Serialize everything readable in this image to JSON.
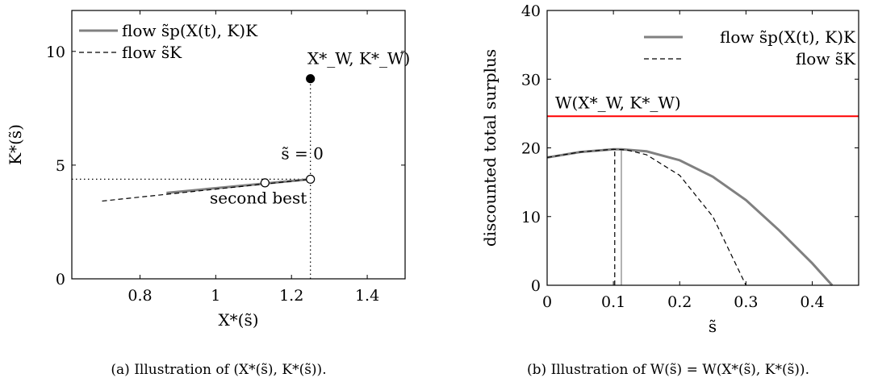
{
  "chart_data": [
    {
      "id": "a",
      "type": "line",
      "caption": "(a) Illustration of (X*(s̃), K*(s̃)).",
      "xlabel": "X*(s̃)",
      "ylabel": "K*(s̃)",
      "xlim": [
        0.62,
        1.5
      ],
      "ylim": [
        0,
        11.8
      ],
      "xticks": [
        0.8,
        1,
        1.2,
        1.4
      ],
      "xtick_labels": [
        "0.8",
        "1",
        "1.2",
        "1.4"
      ],
      "yticks": [
        0,
        5,
        10
      ],
      "ytick_labels": [
        "0",
        "5",
        "10"
      ],
      "legend_position": "top-left",
      "series": [
        {
          "name": "flow s̃p(X(t), K)K",
          "style": "solid-gray",
          "color": "#808080",
          "x": [
            0.87,
            1.25
          ],
          "y": [
            3.78,
            4.38
          ]
        },
        {
          "name": "flow s̃K",
          "style": "dashed-black",
          "color": "#000000",
          "x": [
            0.7,
            1.25
          ],
          "y": [
            3.42,
            4.38
          ]
        }
      ],
      "points": [
        {
          "label": "(X*_W, K*_W)",
          "x": 1.25,
          "y": 8.8,
          "fill": "filled"
        },
        {
          "label": "s̃ = 0",
          "x": 1.25,
          "y": 4.38,
          "fill": "open"
        },
        {
          "label": "second best",
          "x": 1.13,
          "y": 4.22,
          "fill": "open"
        }
      ],
      "annotations": {
        "welfare_point": "X*_W, K*_W)",
        "s_zero": "s̃ = 0",
        "second_best": "second best"
      }
    },
    {
      "id": "b",
      "type": "line",
      "caption": "(b) Illustration of W(s̃) = W(X*(s̃), K*(s̃)).",
      "xlabel": "s̃",
      "ylabel": "discounted total surplus",
      "xlim": [
        0,
        0.47
      ],
      "ylim": [
        0,
        40
      ],
      "xticks": [
        0,
        0.1,
        0.2,
        0.3,
        0.4
      ],
      "xtick_labels": [
        "0",
        "0.1",
        "0.2",
        "0.3",
        "0.4"
      ],
      "yticks": [
        0,
        10,
        20,
        30,
        40
      ],
      "ytick_labels": [
        "0",
        "10",
        "20",
        "30",
        "40"
      ],
      "legend_position": "top-right",
      "hline": {
        "label": "W(X*_W, K*_W)",
        "y": 24.6,
        "color": "#ff0000"
      },
      "vlines": [
        {
          "series": "flow s̃p(X(t), K)K",
          "x": 0.112
        },
        {
          "series": "flow s̃K",
          "x": 0.102
        }
      ],
      "series": [
        {
          "name": "flow s̃p(X(t), K)K",
          "style": "solid-gray",
          "color": "#808080",
          "x": [
            0,
            0.05,
            0.1,
            0.112,
            0.15,
            0.2,
            0.25,
            0.3,
            0.35,
            0.4,
            0.43
          ],
          "y": [
            18.6,
            19.4,
            19.8,
            19.8,
            19.5,
            18.2,
            15.8,
            12.4,
            8.0,
            3.2,
            0
          ]
        },
        {
          "name": "flow s̃K",
          "style": "dashed-black",
          "color": "#000000",
          "x": [
            0,
            0.05,
            0.1,
            0.12,
            0.15,
            0.2,
            0.25,
            0.3
          ],
          "y": [
            18.6,
            19.4,
            19.8,
            19.7,
            19.0,
            16.0,
            10.0,
            0
          ]
        }
      ]
    }
  ]
}
